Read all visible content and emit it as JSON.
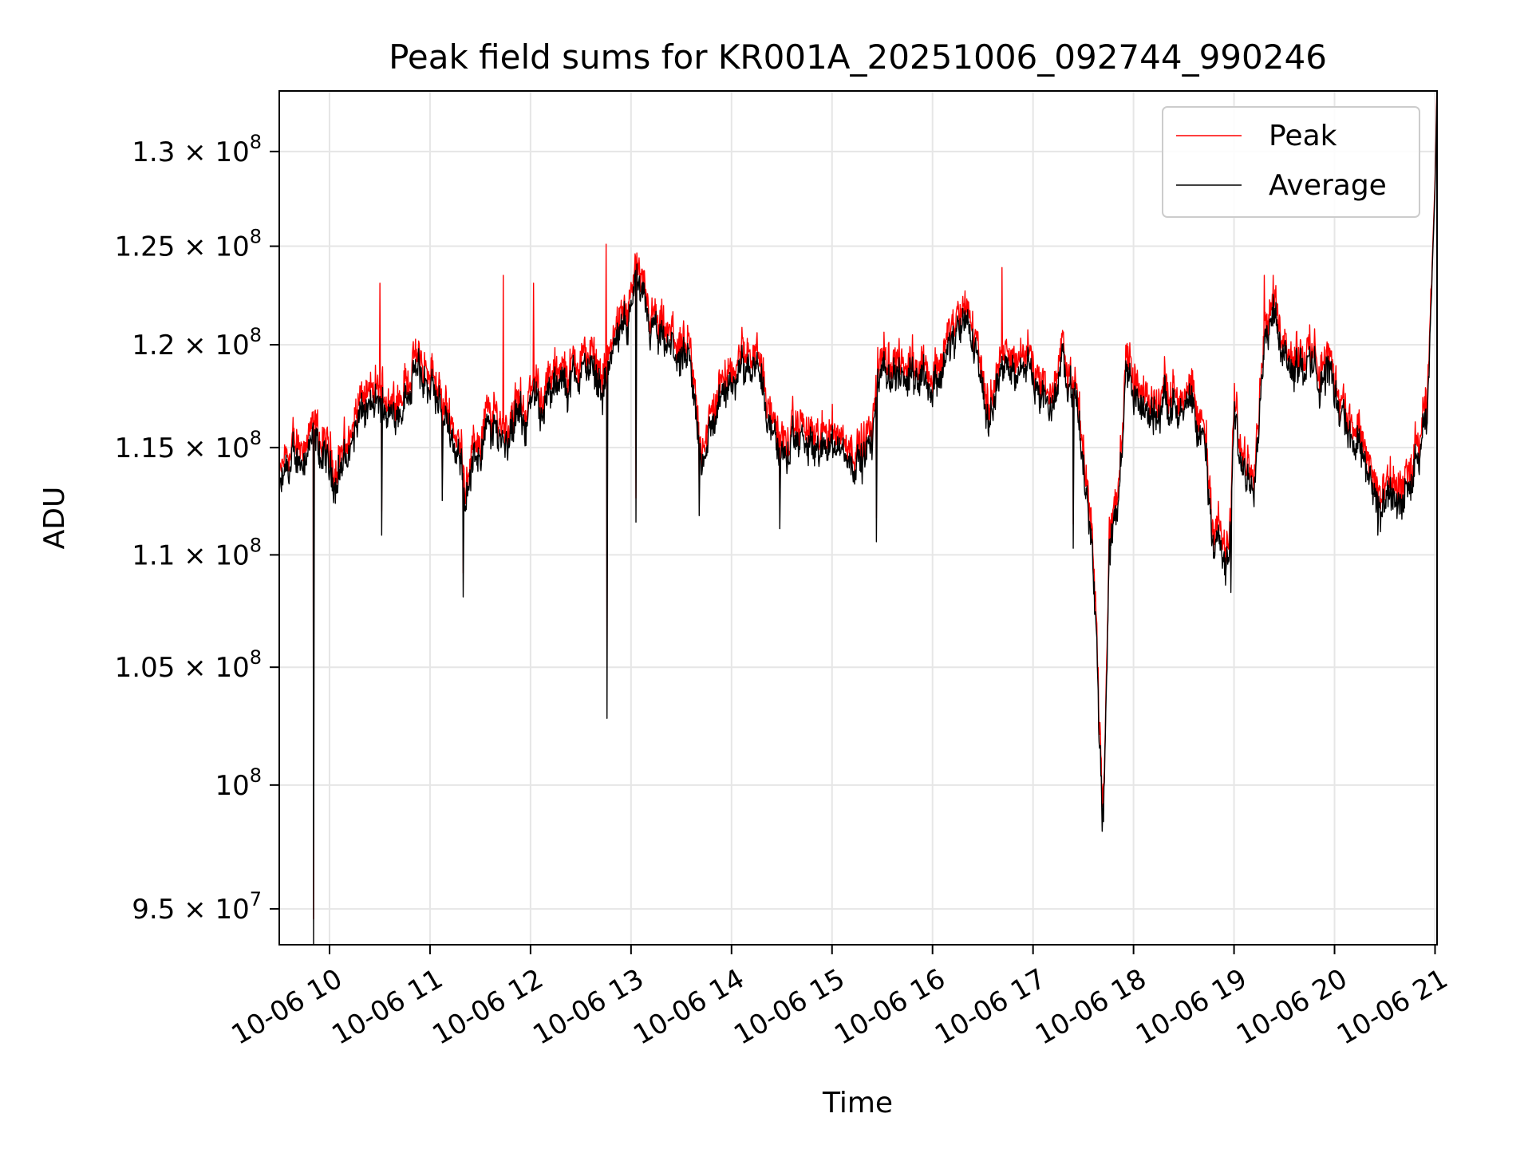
{
  "chart_data": {
    "type": "line",
    "title": "Peak field sums for KR001A_20251006_092744_990246",
    "xlabel": "Time",
    "ylabel": "ADU",
    "yscale": "log",
    "xlim": [
      9.5,
      21.02
    ],
    "ylim": [
      93600000,
      133300000
    ],
    "grid": true,
    "legend_position": "top-right",
    "x_ticks": [
      {
        "value": 10,
        "label": "10-06 10"
      },
      {
        "value": 11,
        "label": "10-06 11"
      },
      {
        "value": 12,
        "label": "10-06 12"
      },
      {
        "value": 13,
        "label": "10-06 13"
      },
      {
        "value": 14,
        "label": "10-06 14"
      },
      {
        "value": 15,
        "label": "10-06 15"
      },
      {
        "value": 16,
        "label": "10-06 16"
      },
      {
        "value": 17,
        "label": "10-06 17"
      },
      {
        "value": 18,
        "label": "10-06 18"
      },
      {
        "value": 19,
        "label": "10-06 19"
      },
      {
        "value": 20,
        "label": "10-06 20"
      },
      {
        "value": 21,
        "label": "10-06 21"
      }
    ],
    "y_ticks": [
      {
        "value": 95000000,
        "mantissa": "9.5",
        "exponent": "7"
      },
      {
        "value": 100000000,
        "mantissa": "",
        "exponent": "8"
      },
      {
        "value": 105000000,
        "mantissa": "1.05",
        "exponent": "8"
      },
      {
        "value": 110000000,
        "mantissa": "1.1",
        "exponent": "8"
      },
      {
        "value": 115000000,
        "mantissa": "1.15",
        "exponent": "8"
      },
      {
        "value": 120000000,
        "mantissa": "1.2",
        "exponent": "8"
      },
      {
        "value": 125000000,
        "mantissa": "1.25",
        "exponent": "8"
      },
      {
        "value": 130000000,
        "mantissa": "1.3",
        "exponent": "8"
      }
    ],
    "series": [
      {
        "name": "Peak",
        "color": "#ff0000"
      },
      {
        "name": "Average",
        "color": "#000000"
      }
    ],
    "average_anchor_points": [
      [
        9.5,
        112.6
      ],
      [
        9.55,
        113.5
      ],
      [
        9.7,
        114.6
      ],
      [
        9.85,
        115.0
      ],
      [
        9.95,
        114.3
      ],
      [
        10.05,
        113.5
      ],
      [
        10.2,
        114.8
      ],
      [
        10.28,
        116.2
      ],
      [
        10.4,
        116.8
      ],
      [
        10.55,
        117.0
      ],
      [
        10.62,
        116.5
      ],
      [
        10.75,
        117.5
      ],
      [
        10.85,
        118.6
      ],
      [
        11.0,
        117.8
      ],
      [
        11.1,
        116.8
      ],
      [
        11.22,
        115.8
      ],
      [
        11.35,
        113.0
      ],
      [
        11.45,
        114.5
      ],
      [
        11.6,
        116.0
      ],
      [
        11.75,
        115.5
      ],
      [
        11.9,
        116.2
      ],
      [
        12.05,
        117.0
      ],
      [
        12.2,
        117.5
      ],
      [
        12.4,
        118.2
      ],
      [
        12.6,
        119.0
      ],
      [
        12.72,
        118.0
      ],
      [
        12.85,
        120.0
      ],
      [
        12.95,
        121.0
      ],
      [
        13.05,
        123.2
      ],
      [
        13.15,
        121.2
      ],
      [
        13.3,
        119.8
      ],
      [
        13.45,
        119.6
      ],
      [
        13.6,
        118.3
      ],
      [
        13.7,
        114.2
      ],
      [
        13.8,
        116.2
      ],
      [
        13.95,
        117.5
      ],
      [
        14.1,
        119.0
      ],
      [
        14.25,
        119.5
      ],
      [
        14.35,
        117.0
      ],
      [
        14.45,
        115.0
      ],
      [
        14.55,
        114.5
      ],
      [
        14.7,
        115.3
      ],
      [
        14.85,
        114.7
      ],
      [
        15.0,
        115.3
      ],
      [
        15.15,
        114.6
      ],
      [
        15.3,
        114.3
      ],
      [
        15.4,
        115.0
      ],
      [
        15.45,
        118.3
      ],
      [
        15.6,
        118.6
      ],
      [
        15.75,
        118.4
      ],
      [
        15.9,
        118.8
      ],
      [
        16.0,
        117.8
      ],
      [
        16.1,
        119.0
      ],
      [
        16.2,
        120.2
      ],
      [
        16.35,
        120.8
      ],
      [
        16.45,
        119.5
      ],
      [
        16.55,
        116.5
      ],
      [
        16.65,
        118.4
      ],
      [
        16.8,
        118.8
      ],
      [
        16.95,
        119.2
      ],
      [
        17.05,
        117.8
      ],
      [
        17.2,
        116.8
      ],
      [
        17.3,
        119.4
      ],
      [
        17.4,
        117.8
      ],
      [
        17.52,
        113.5
      ],
      [
        17.6,
        110.0
      ],
      [
        17.66,
        103.0
      ],
      [
        17.7,
        99.0
      ],
      [
        17.76,
        110.5
      ],
      [
        17.85,
        111.8
      ],
      [
        17.92,
        118.8
      ],
      [
        18.05,
        116.8
      ],
      [
        18.2,
        116.4
      ],
      [
        18.35,
        117.8
      ],
      [
        18.45,
        116.5
      ],
      [
        18.58,
        116.4
      ],
      [
        18.7,
        115.2
      ],
      [
        18.8,
        110.8
      ],
      [
        18.95,
        109.6
      ],
      [
        19.0,
        116.3
      ],
      [
        19.1,
        113.5
      ],
      [
        19.2,
        114.0
      ],
      [
        19.3,
        120.2
      ],
      [
        19.4,
        121.8
      ],
      [
        19.55,
        119.2
      ],
      [
        19.7,
        119.0
      ],
      [
        19.85,
        118.5
      ],
      [
        19.95,
        118.8
      ],
      [
        20.05,
        117.0
      ],
      [
        20.2,
        115.5
      ],
      [
        20.35,
        113.8
      ],
      [
        20.45,
        112.1
      ],
      [
        20.6,
        112.5
      ],
      [
        20.8,
        113.5
      ],
      [
        20.92,
        116.0
      ],
      [
        21.0,
        128.0
      ],
      [
        21.02,
        133.3
      ]
    ],
    "dips": [
      {
        "x": 9.84,
        "value": 93600000
      },
      {
        "x": 10.52,
        "value": 110900000
      },
      {
        "x": 11.12,
        "value": 112500000
      },
      {
        "x": 11.33,
        "value": 108100000
      },
      {
        "x": 12.76,
        "value": 102800000
      },
      {
        "x": 13.05,
        "value": 111500000
      },
      {
        "x": 13.68,
        "value": 111800000
      },
      {
        "x": 14.48,
        "value": 111200000
      },
      {
        "x": 15.44,
        "value": 110600000
      },
      {
        "x": 17.4,
        "value": 110300000
      },
      {
        "x": 17.69,
        "value": 98100000
      },
      {
        "x": 18.97,
        "value": 108300000
      },
      {
        "x": 20.43,
        "value": 110900000
      }
    ],
    "peak_spikes": [
      {
        "x": 10.5,
        "value": 123100000
      },
      {
        "x": 11.73,
        "value": 123500000
      },
      {
        "x": 12.03,
        "value": 123100000
      },
      {
        "x": 12.75,
        "value": 125100000
      },
      {
        "x": 16.69,
        "value": 123900000
      },
      {
        "x": 19.3,
        "value": 123500000
      }
    ]
  }
}
